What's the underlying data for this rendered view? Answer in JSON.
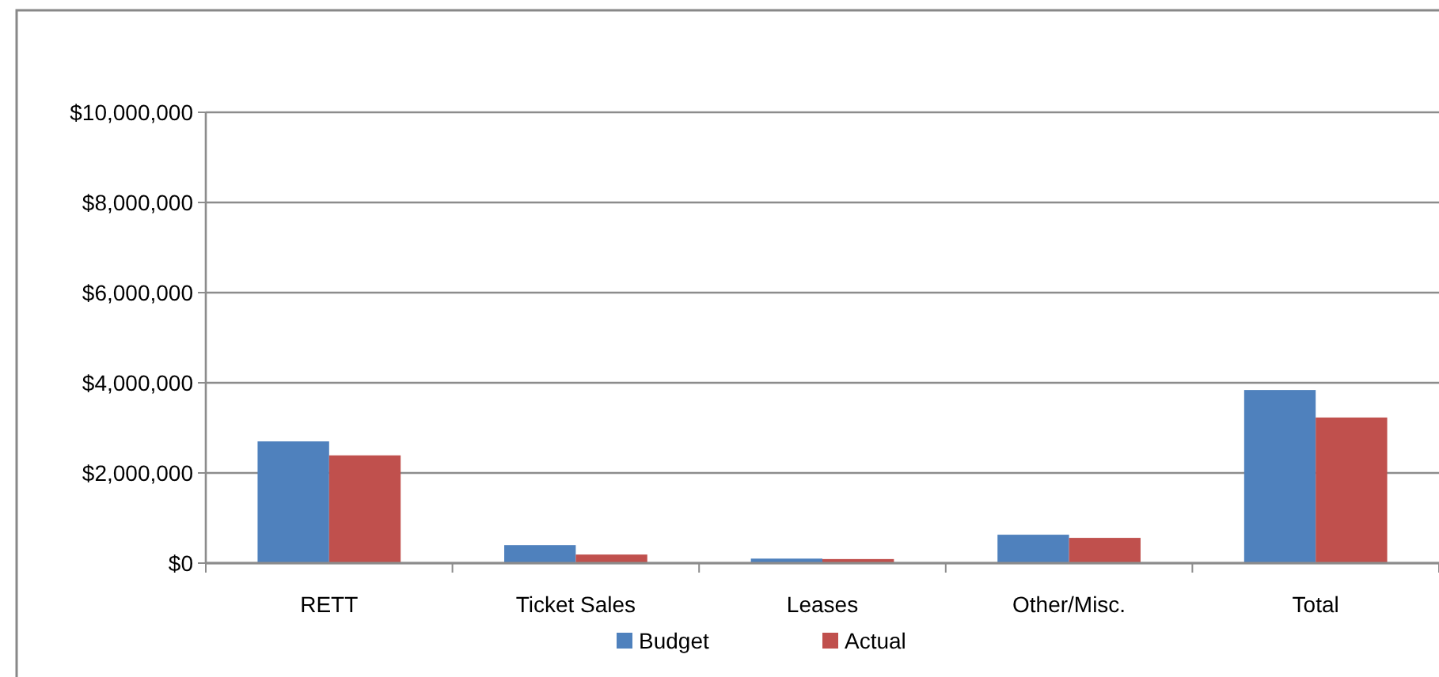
{
  "chart_data": {
    "type": "bar",
    "categories": [
      "RETT",
      "Ticket Sales",
      "Leases",
      "Other/Misc.",
      "Total"
    ],
    "series": [
      {
        "name": "Budget",
        "color": "#4f81bd",
        "values": [
          2700000,
          400000,
          100000,
          630000,
          3840000
        ]
      },
      {
        "name": "Actual",
        "color": "#c0504d",
        "values": [
          2390000,
          190000,
          90000,
          560000,
          3230000
        ]
      }
    ],
    "ylim": [
      0,
      10000000
    ],
    "yticks": [
      {
        "value": 0,
        "label": "$0"
      },
      {
        "value": 2000000,
        "label": "$2,000,000"
      },
      {
        "value": 4000000,
        "label": "$4,000,000"
      },
      {
        "value": 6000000,
        "label": "$6,000,000"
      },
      {
        "value": 8000000,
        "label": "$8,000,000"
      },
      {
        "value": 10000000,
        "label": "$10,000,000"
      }
    ],
    "grid": "y",
    "legend": "bottom"
  }
}
